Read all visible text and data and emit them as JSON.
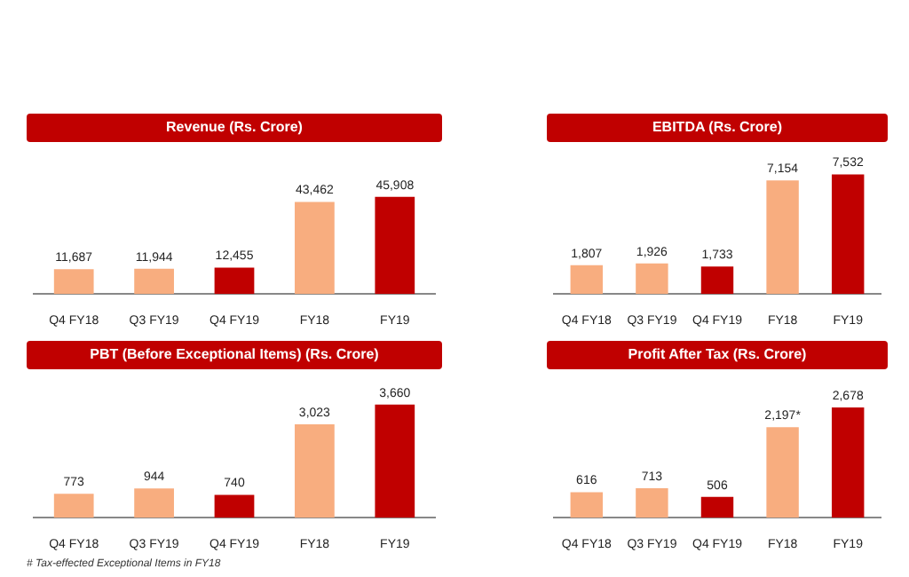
{
  "chart_data": [
    {
      "type": "bar",
      "title": "Revenue (Rs. Crore)",
      "categories": [
        "Q4 FY18",
        "Q3 FY19",
        "Q4 FY19",
        "FY18",
        "FY19"
      ],
      "values": [
        11687,
        11944,
        12455,
        43462,
        45908
      ],
      "colors": [
        "#f8ad7f",
        "#f8ad7f",
        "#c00000",
        "#f8ad7f",
        "#c00000"
      ],
      "data_labels": true,
      "value_labels": [
        "11,687",
        "11,944",
        "12,455",
        "43,462",
        "45,908"
      ]
    },
    {
      "type": "bar",
      "title": "EBITDA (Rs. Crore)",
      "categories": [
        "Q4 FY18",
        "Q3 FY19",
        "Q4 FY19",
        "FY18",
        "FY19"
      ],
      "values": [
        1807,
        1926,
        1733,
        7154,
        7532
      ],
      "colors": [
        "#f8ad7f",
        "#f8ad7f",
        "#c00000",
        "#f8ad7f",
        "#c00000"
      ],
      "data_labels": true,
      "value_labels": [
        "1,807",
        "1,926",
        "1,733",
        "7,154",
        "7,532"
      ]
    },
    {
      "type": "bar",
      "title": "PBT (Before Exceptional Items) (Rs. Crore)",
      "categories": [
        "Q4 FY18",
        "Q3 FY19",
        "Q4 FY19",
        "FY18",
        "FY19"
      ],
      "values": [
        773,
        944,
        740,
        3023,
        3660
      ],
      "colors": [
        "#f8ad7f",
        "#f8ad7f",
        "#c00000",
        "#f8ad7f",
        "#c00000"
      ],
      "data_labels": true,
      "value_labels": [
        "773",
        "944",
        "740",
        "3,023",
        "3,660"
      ],
      "annotations": [
        "# Tax-effected Exceptional Items in FY18"
      ]
    },
    {
      "type": "bar",
      "title": "Profit After Tax (Rs. Crore)",
      "categories": [
        "Q4 FY18",
        "Q3 FY19",
        "Q4 FY19",
        "FY18",
        "FY19"
      ],
      "values": [
        616,
        713,
        506,
        2197,
        2678
      ],
      "colors": [
        "#f8ad7f",
        "#f8ad7f",
        "#c00000",
        "#f8ad7f",
        "#c00000"
      ],
      "data_labels": true,
      "value_labels": [
        "616",
        "713",
        "506",
        "2,197*",
        "2,678"
      ]
    }
  ]
}
